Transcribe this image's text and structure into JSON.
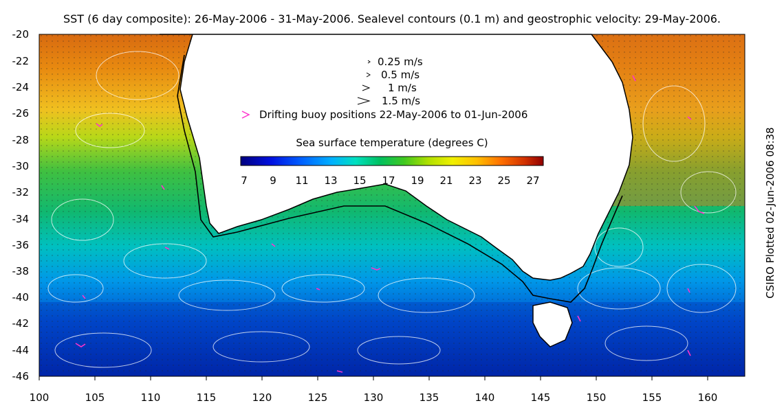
{
  "title": "SST (6 day composite): 26-May-2006 - 31-May-2006. Sealevel contours (0.1 m) and geostrophic velocity: 29-May-2006.",
  "credit": "CSIRO Plotted 02-Jun-2006 08:38",
  "velocity_legend": [
    {
      "label": "0.25 m/s"
    },
    {
      "label": "0.5 m/s"
    },
    {
      "label": "1 m/s"
    },
    {
      "label": "1.5 m/s"
    }
  ],
  "buoy_legend": {
    "symbol": ">",
    "label": "Drifting buoy positions 22-May-2006 to 01-Jun-2006",
    "color": "#ff33cc"
  },
  "colorbar": {
    "title": "Sea surface temperature (degrees C)",
    "ticks": [
      "7",
      "9",
      "11",
      "13",
      "15",
      "17",
      "19",
      "21",
      "23",
      "25",
      "27"
    ],
    "range": [
      7,
      28
    ],
    "colors": [
      "#00007f",
      "#0000c8",
      "#0044ff",
      "#0088ff",
      "#00ccff",
      "#00e0c0",
      "#00c060",
      "#22c040",
      "#66d020",
      "#b8e000",
      "#f0f000",
      "#ffc000",
      "#ff8800",
      "#e05000",
      "#a80000"
    ]
  },
  "axes": {
    "lat_labels": [
      "-20",
      "-22",
      "-24",
      "-26",
      "-28",
      "-30",
      "-32",
      "-34",
      "-36",
      "-38",
      "-40",
      "-42",
      "-44",
      "-46"
    ],
    "lon_labels": [
      "100",
      "105",
      "110",
      "115",
      "120",
      "125",
      "130",
      "135",
      "140",
      "145",
      "150",
      "155",
      "160"
    ]
  }
}
